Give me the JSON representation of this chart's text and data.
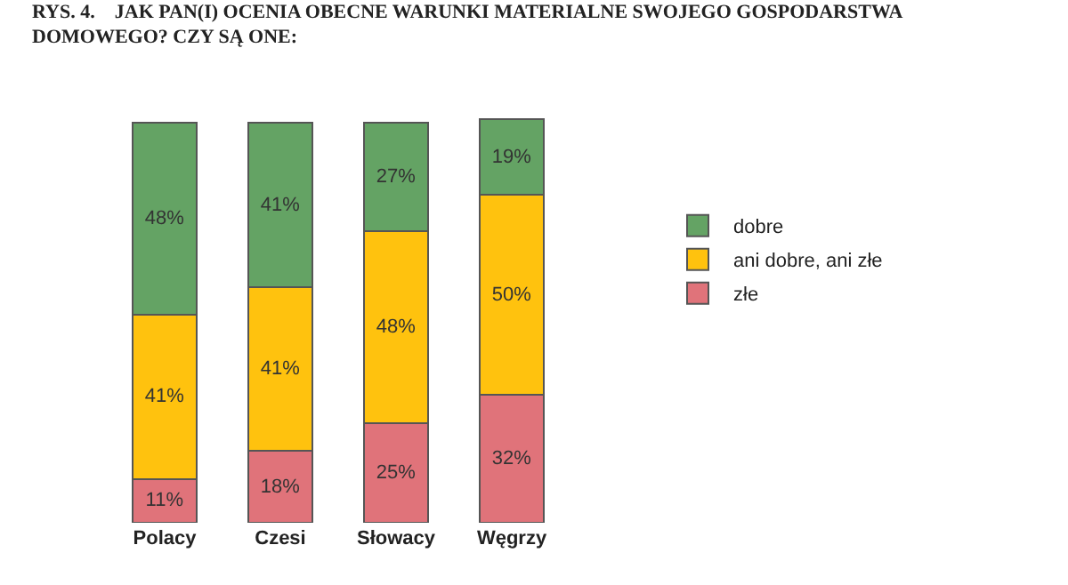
{
  "chart_data": {
    "type": "bar",
    "stacked": true,
    "legend": "right",
    "title": "RYS. 4.    JAK PAN(I) OCENIA OBECNE WARUNKI MATERIALNE SWOJEGO GOSPODARSTWA DOMOWEGO? CZY SĄ ONE:",
    "categories": [
      "Polacy",
      "Czesi",
      "Słowacy",
      "Węgrzy"
    ],
    "series": [
      {
        "name": "złe",
        "color": "#e0737a",
        "values": [
          11,
          18,
          25,
          32
        ],
        "value_labels": [
          "11%",
          "18%",
          "25%",
          "32%"
        ]
      },
      {
        "name": "ani dobre, ani złe",
        "color": "#ffc20e",
        "values": [
          41,
          41,
          48,
          50
        ],
        "value_labels": [
          "41%",
          "41%",
          "48%",
          "50%"
        ]
      },
      {
        "name": "dobre",
        "color": "#64a364",
        "values": [
          48,
          41,
          27,
          19
        ],
        "value_labels": [
          "48%",
          "41%",
          "27%",
          "19%"
        ]
      }
    ]
  }
}
